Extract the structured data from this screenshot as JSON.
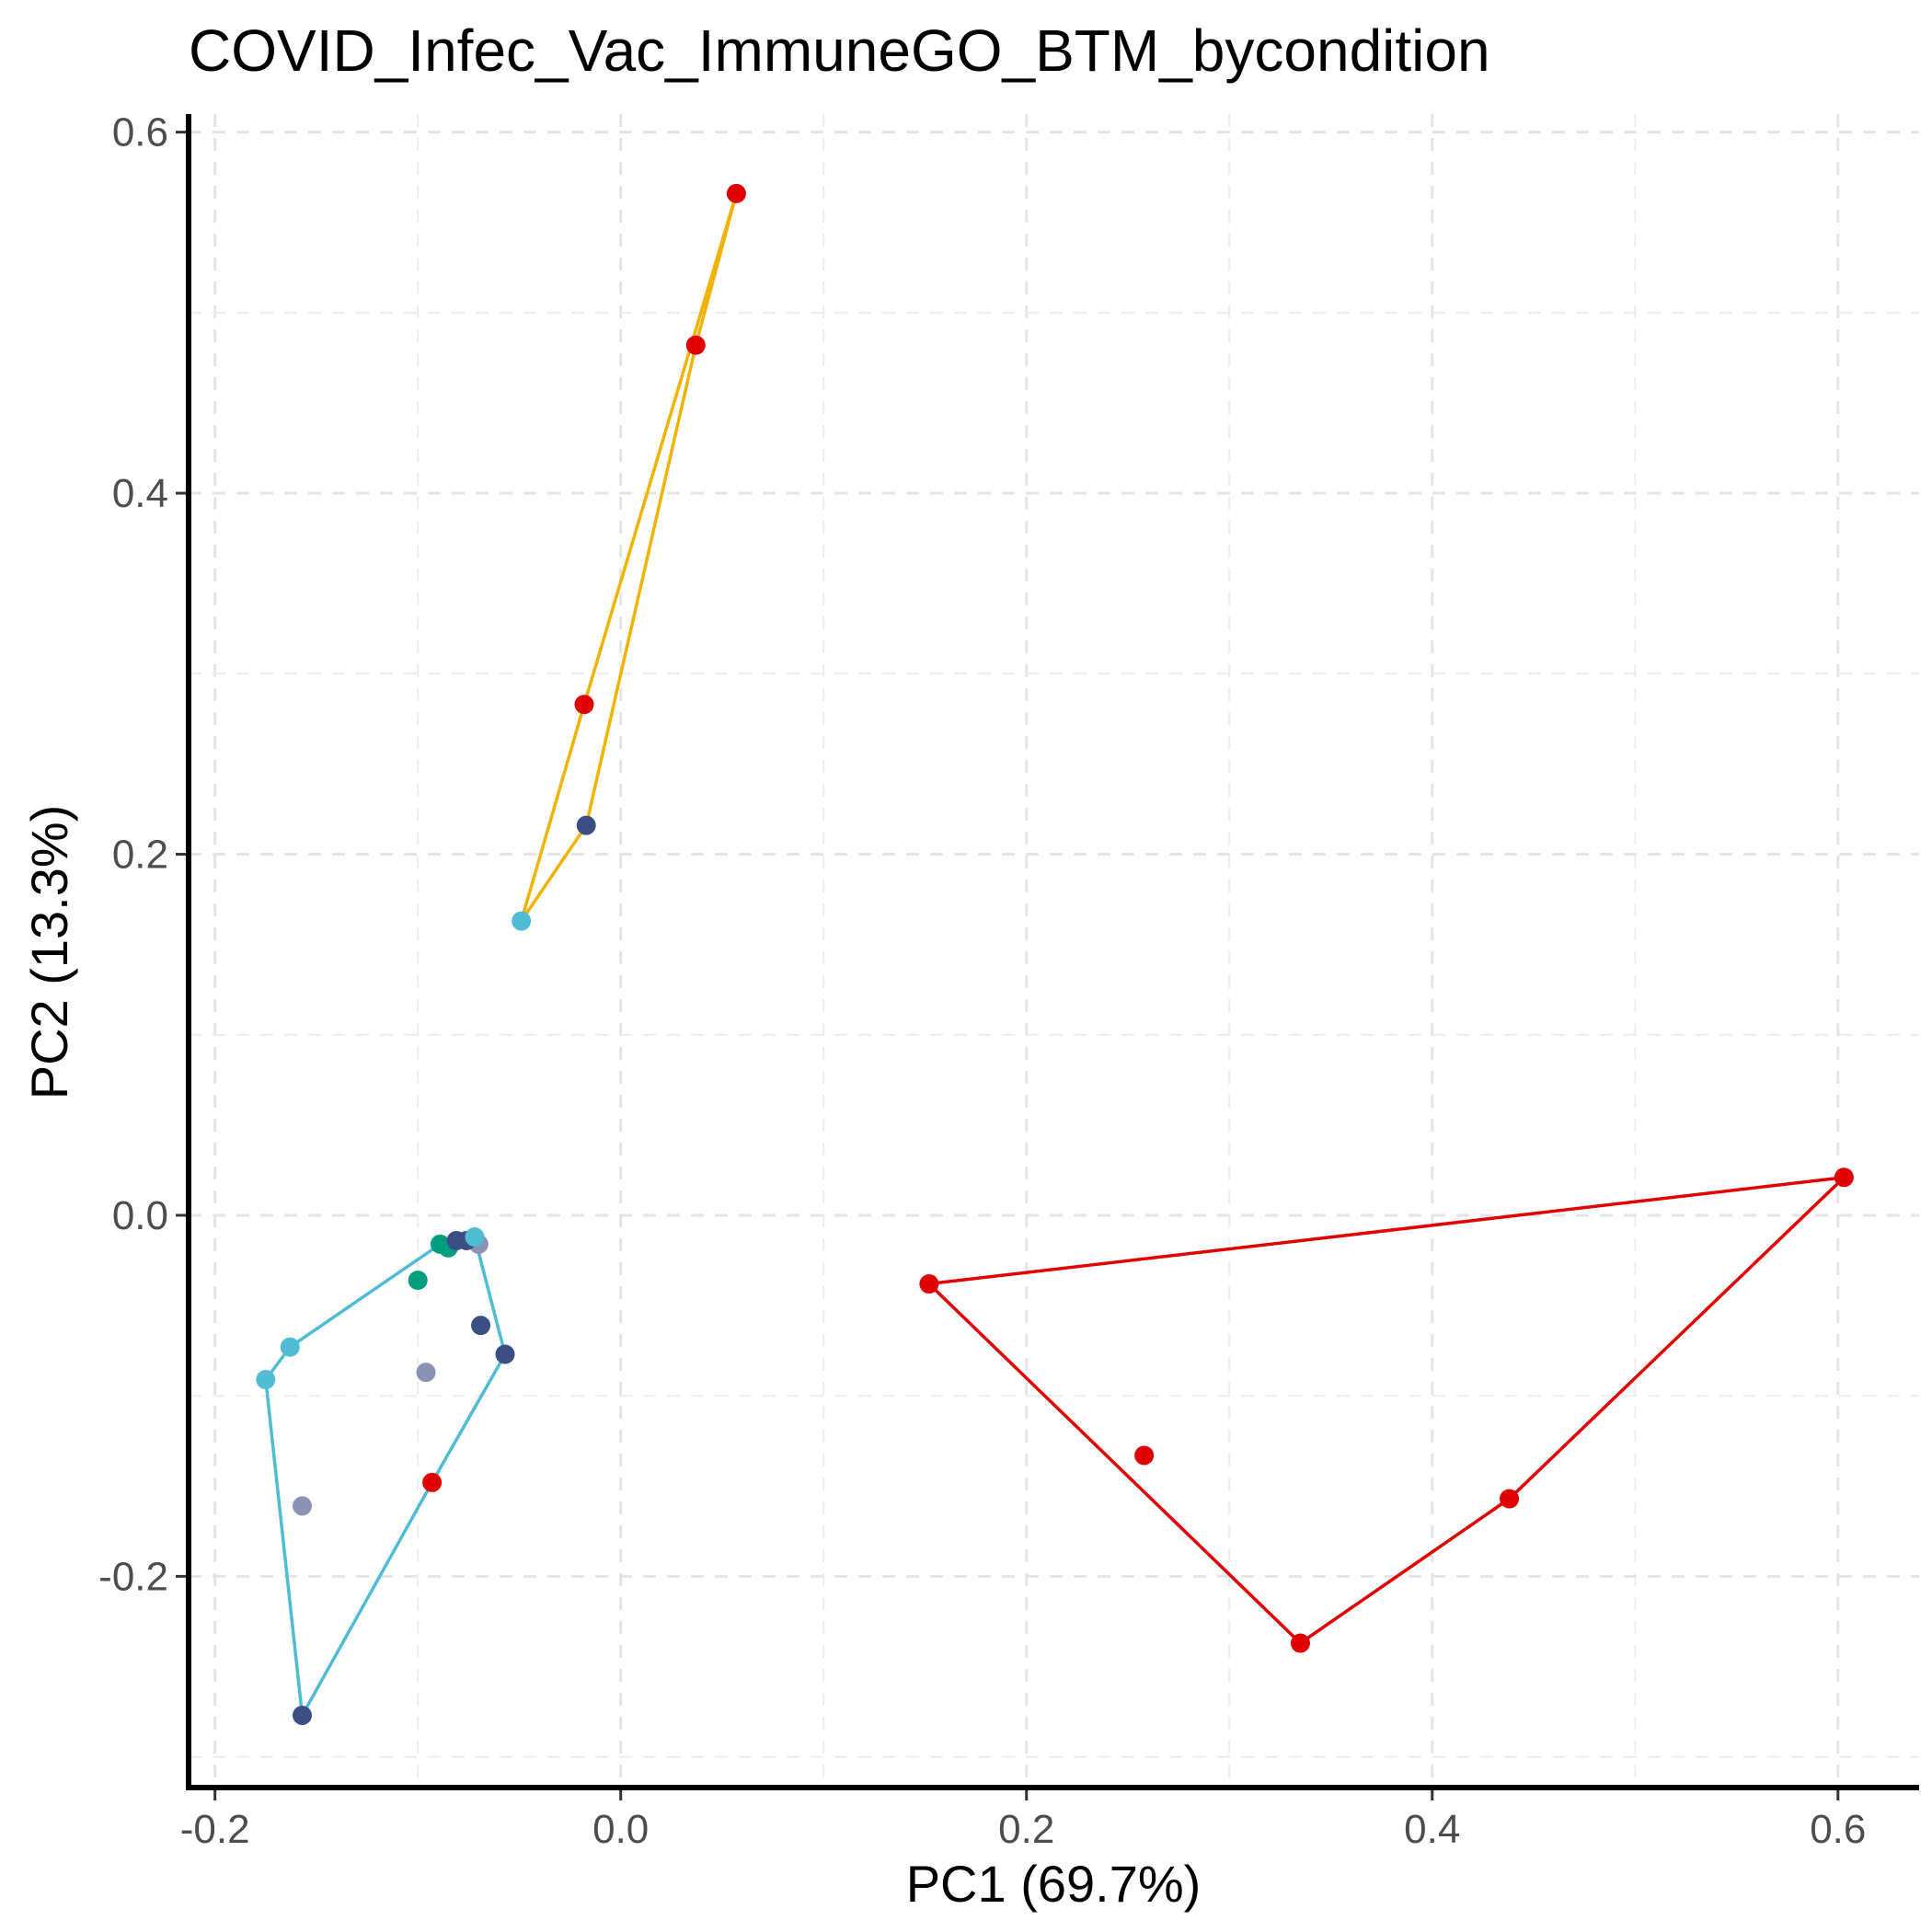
{
  "chart_data": {
    "type": "scatter",
    "title": "COVID_Infec_Vac_ImmuneGO_BTM_bycondition",
    "xlabel": "PC1 (69.7%)",
    "ylabel": "PC2 (13.3%)",
    "xlim": [
      -0.213,
      0.64
    ],
    "ylim": [
      -0.317,
      0.61
    ],
    "x_ticks": [
      -0.2,
      0.0,
      0.2,
      0.4,
      0.6
    ],
    "x_tick_labels": [
      "-0.2",
      "0.0",
      "0.2",
      "0.4",
      "0.6"
    ],
    "y_ticks": [
      -0.2,
      0.0,
      0.2,
      0.4,
      0.6
    ],
    "y_tick_labels": [
      "-0.2",
      "0.0",
      "0.2",
      "0.4",
      "0.6"
    ],
    "grid": true,
    "grid_style": "dashed",
    "legend": "none",
    "points": [
      {
        "x": 0.057,
        "y": 0.566,
        "color": "#e00000"
      },
      {
        "x": 0.037,
        "y": 0.482,
        "color": "#e00000"
      },
      {
        "x": -0.018,
        "y": 0.283,
        "color": "#e00000"
      },
      {
        "x": -0.017,
        "y": 0.216,
        "color": "#3b4f85"
      },
      {
        "x": -0.049,
        "y": 0.163,
        "color": "#4fbcd4"
      },
      {
        "x": 0.152,
        "y": -0.038,
        "color": "#e00000"
      },
      {
        "x": 0.603,
        "y": 0.021,
        "color": "#e00000"
      },
      {
        "x": 0.258,
        "y": -0.133,
        "color": "#e00000"
      },
      {
        "x": 0.438,
        "y": -0.157,
        "color": "#e00000"
      },
      {
        "x": 0.335,
        "y": -0.237,
        "color": "#e00000"
      },
      {
        "x": -0.089,
        "y": -0.016,
        "color": "#009e81"
      },
      {
        "x": -0.085,
        "y": -0.018,
        "color": "#009e81"
      },
      {
        "x": -0.1,
        "y": -0.036,
        "color": "#009e81"
      },
      {
        "x": -0.081,
        "y": -0.014,
        "color": "#3b4f85"
      },
      {
        "x": -0.07,
        "y": -0.016,
        "color": "#8a93b5"
      },
      {
        "x": -0.076,
        "y": -0.014,
        "color": "#3b4f85"
      },
      {
        "x": -0.072,
        "y": -0.012,
        "color": "#4fbcd4"
      },
      {
        "x": -0.069,
        "y": -0.061,
        "color": "#3b4f85"
      },
      {
        "x": -0.057,
        "y": -0.077,
        "color": "#3b4f85"
      },
      {
        "x": -0.096,
        "y": -0.087,
        "color": "#8a93b5"
      },
      {
        "x": -0.163,
        "y": -0.073,
        "color": "#4fbcd4"
      },
      {
        "x": -0.175,
        "y": -0.091,
        "color": "#4fbcd4"
      },
      {
        "x": -0.093,
        "y": -0.148,
        "color": "#e00000"
      },
      {
        "x": -0.157,
        "y": -0.161,
        "color": "#8a93b5"
      },
      {
        "x": -0.157,
        "y": -0.277,
        "color": "#3b4f85"
      }
    ],
    "hulls": [
      {
        "color": "#f0b400",
        "points": [
          [
            0.057,
            0.566
          ],
          [
            0.037,
            0.482
          ],
          [
            -0.017,
            0.216
          ],
          [
            -0.049,
            0.163
          ],
          [
            -0.018,
            0.283
          ]
        ]
      },
      {
        "color": "#e00000",
        "points": [
          [
            0.152,
            -0.038
          ],
          [
            0.603,
            0.021
          ],
          [
            0.438,
            -0.157
          ],
          [
            0.335,
            -0.237
          ]
        ]
      },
      {
        "color": "#4fbcd4",
        "points": [
          [
            -0.089,
            -0.016
          ],
          [
            -0.072,
            -0.012
          ],
          [
            -0.057,
            -0.077
          ],
          [
            -0.093,
            -0.148
          ],
          [
            -0.157,
            -0.277
          ],
          [
            -0.175,
            -0.091
          ],
          [
            -0.163,
            -0.073
          ]
        ]
      }
    ]
  }
}
